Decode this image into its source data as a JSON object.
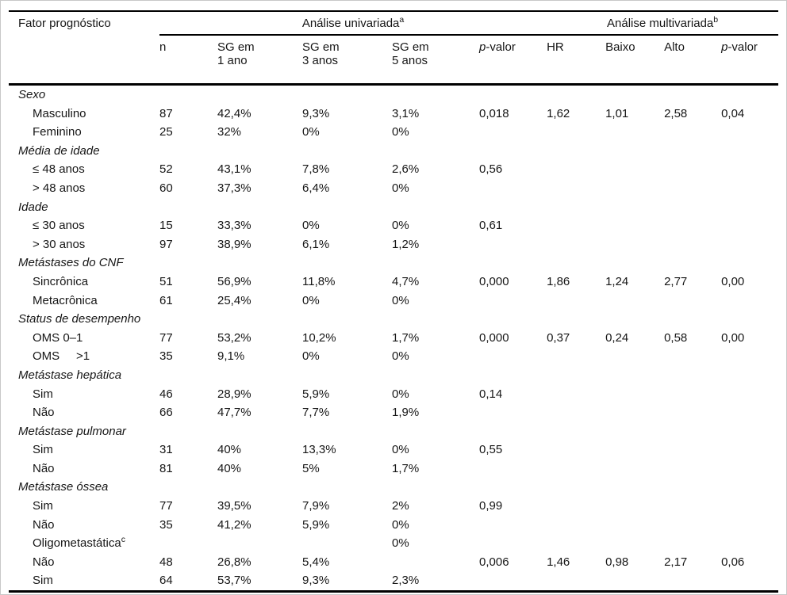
{
  "colors": {
    "background": "#ffffff",
    "text": "#161616",
    "rule": "#000000",
    "frame": "#c8c8c8"
  },
  "table": {
    "col1_header": "Fator prognóstico",
    "groups": [
      {
        "label": "Análise univariada",
        "sup": "a"
      },
      {
        "label": "Análise multivariada",
        "sup": "b"
      }
    ],
    "columns": [
      {
        "line1": "n",
        "line2": ""
      },
      {
        "line1": "SG em",
        "line2": "1 ano"
      },
      {
        "line1": "SG em",
        "line2": "3 anos"
      },
      {
        "line1": "SG em",
        "line2": "5 anos"
      },
      {
        "italic_p": true,
        "line1": "-valor",
        "line2": ""
      },
      {
        "line1": "HR",
        "line2": ""
      },
      {
        "line1": "Baixo",
        "line2": ""
      },
      {
        "line1": "Alto",
        "line2": ""
      },
      {
        "italic_p": true,
        "line1": "-valor",
        "line2": ""
      }
    ],
    "rows": [
      {
        "type": "section",
        "label": "Sexo",
        "cells": []
      },
      {
        "type": "item",
        "label": "Masculino",
        "cells": [
          "87",
          "42,4%",
          "9,3%",
          "3,1%",
          "0,018",
          "1,62",
          "1,01",
          "2,58",
          "0,04"
        ]
      },
      {
        "type": "item",
        "label": "Feminino",
        "cells": [
          "25",
          "32%",
          "0%",
          "0%",
          "",
          "",
          "",
          "",
          ""
        ]
      },
      {
        "type": "section",
        "label": "Média de idade",
        "cells": []
      },
      {
        "type": "item",
        "label": "≤ 48 anos",
        "cells": [
          "52",
          "43,1%",
          "7,8%",
          "2,6%",
          "0,56",
          "",
          "",
          "",
          ""
        ]
      },
      {
        "type": "item",
        "label": "> 48 anos",
        "cells": [
          "60",
          "37,3%",
          "6,4%",
          "0%",
          "",
          "",
          "",
          "",
          ""
        ]
      },
      {
        "type": "section",
        "label": "Idade",
        "cells": []
      },
      {
        "type": "item",
        "label": "≤ 30 anos",
        "cells": [
          "15",
          "33,3%",
          "0%",
          "0%",
          "0,61",
          "",
          "",
          "",
          ""
        ]
      },
      {
        "type": "item",
        "label": "> 30 anos",
        "cells": [
          "97",
          "38,9%",
          "6,1%",
          "1,2%",
          "",
          "",
          "",
          "",
          ""
        ]
      },
      {
        "type": "section",
        "label": "Metástases do CNF",
        "cells": []
      },
      {
        "type": "item",
        "label": "Sincrônica",
        "cells": [
          "51",
          "56,9%",
          "11,8%",
          "4,7%",
          "0,000",
          "1,86",
          "1,24",
          "2,77",
          "0,00"
        ]
      },
      {
        "type": "item",
        "label": "Metacrônica",
        "cells": [
          "61",
          "25,4%",
          "0%",
          "0%",
          "",
          "",
          "",
          "",
          ""
        ]
      },
      {
        "type": "section",
        "label": "Status de desempenho",
        "cells": []
      },
      {
        "type": "item",
        "label": "OMS 0–1",
        "cells": [
          "77",
          "53,2%",
          "10,2%",
          "1,7%",
          "0,000",
          "0,37",
          "0,24",
          "0,58",
          "0,00"
        ]
      },
      {
        "type": "item",
        "label": "OMS     >1",
        "cells": [
          "35",
          "9,1%",
          "0%",
          "0%",
          "",
          "",
          "",
          "",
          ""
        ]
      },
      {
        "type": "section",
        "label": "Metástase hepática",
        "cells": []
      },
      {
        "type": "item",
        "label": "Sim",
        "cells": [
          "46",
          "28,9%",
          "5,9%",
          "0%",
          "0,14",
          "",
          "",
          "",
          ""
        ]
      },
      {
        "type": "item",
        "label": "Não",
        "cells": [
          "66",
          "47,7%",
          "7,7%",
          "1,9%",
          "",
          "",
          "",
          "",
          ""
        ]
      },
      {
        "type": "section",
        "label": "Metástase pulmonar",
        "cells": []
      },
      {
        "type": "item",
        "label": "Sim",
        "cells": [
          "31",
          "40%",
          "13,3%",
          "0%",
          "0,55",
          "",
          "",
          "",
          ""
        ]
      },
      {
        "type": "item",
        "label": "Não",
        "cells": [
          "81",
          "40%",
          "5%",
          "1,7%",
          "",
          "",
          "",
          "",
          ""
        ]
      },
      {
        "type": "section",
        "label": "Metástase óssea",
        "cells": []
      },
      {
        "type": "item",
        "label": "Sim",
        "cells": [
          "77",
          "39,5%",
          "7,9%",
          "2%",
          "0,99",
          "",
          "",
          "",
          ""
        ]
      },
      {
        "type": "item",
        "label": "Não",
        "cells": [
          "35",
          "41,2%",
          "5,9%",
          "0%",
          "",
          "",
          "",
          "",
          ""
        ]
      },
      {
        "type": "item",
        "label": "Oligometastática",
        "sup": "c",
        "cells": [
          "",
          "",
          "",
          "0%",
          "",
          "",
          "",
          "",
          ""
        ]
      },
      {
        "type": "item",
        "label": "Não",
        "cells": [
          "48",
          "26,8%",
          "5,4%",
          "",
          "0,006",
          "1,46",
          "0,98",
          "2,17",
          "0,06"
        ]
      },
      {
        "type": "item",
        "label": "Sim",
        "cells": [
          "64",
          "53,7%",
          "9,3%",
          "2,3%",
          "",
          "",
          "",
          "",
          ""
        ]
      }
    ]
  }
}
